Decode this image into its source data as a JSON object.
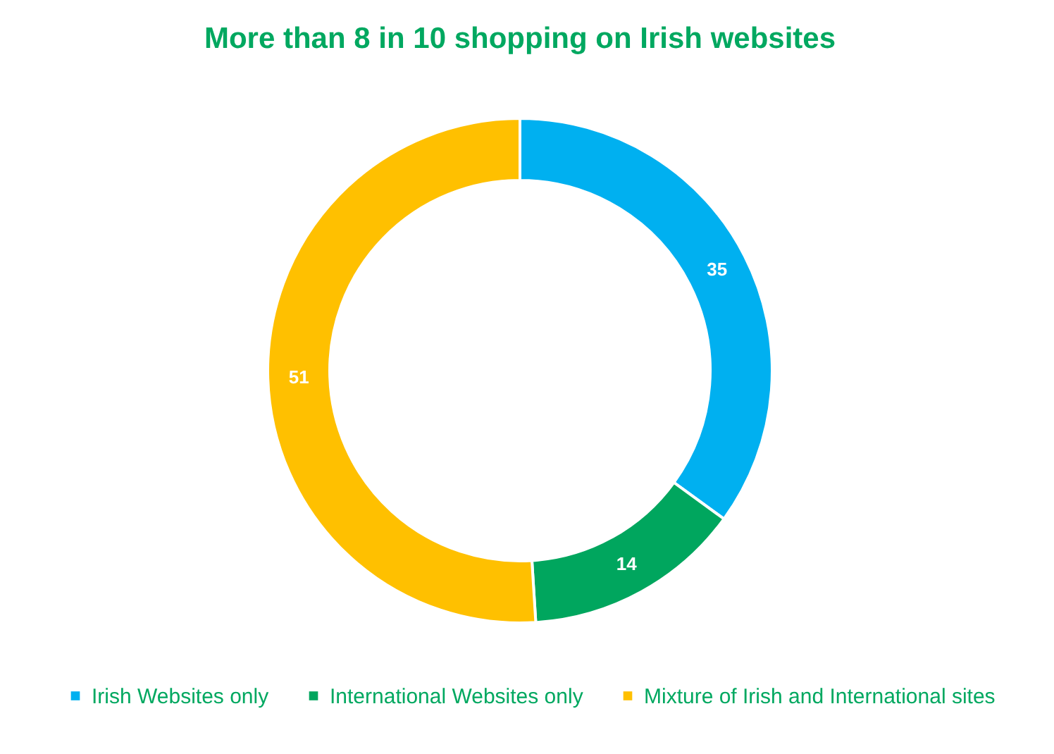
{
  "chart_data": {
    "type": "donut",
    "title": "More than 8 in 10 shopping on Irish websites",
    "categories": [
      "Irish Websites only",
      "International Websites only",
      "Mixture of Irish and International sites"
    ],
    "values": [
      35,
      14,
      51
    ],
    "colors": [
      "#00b0f0",
      "#00a65e",
      "#ffc000"
    ],
    "data_labels": true,
    "legend": "bottom"
  }
}
